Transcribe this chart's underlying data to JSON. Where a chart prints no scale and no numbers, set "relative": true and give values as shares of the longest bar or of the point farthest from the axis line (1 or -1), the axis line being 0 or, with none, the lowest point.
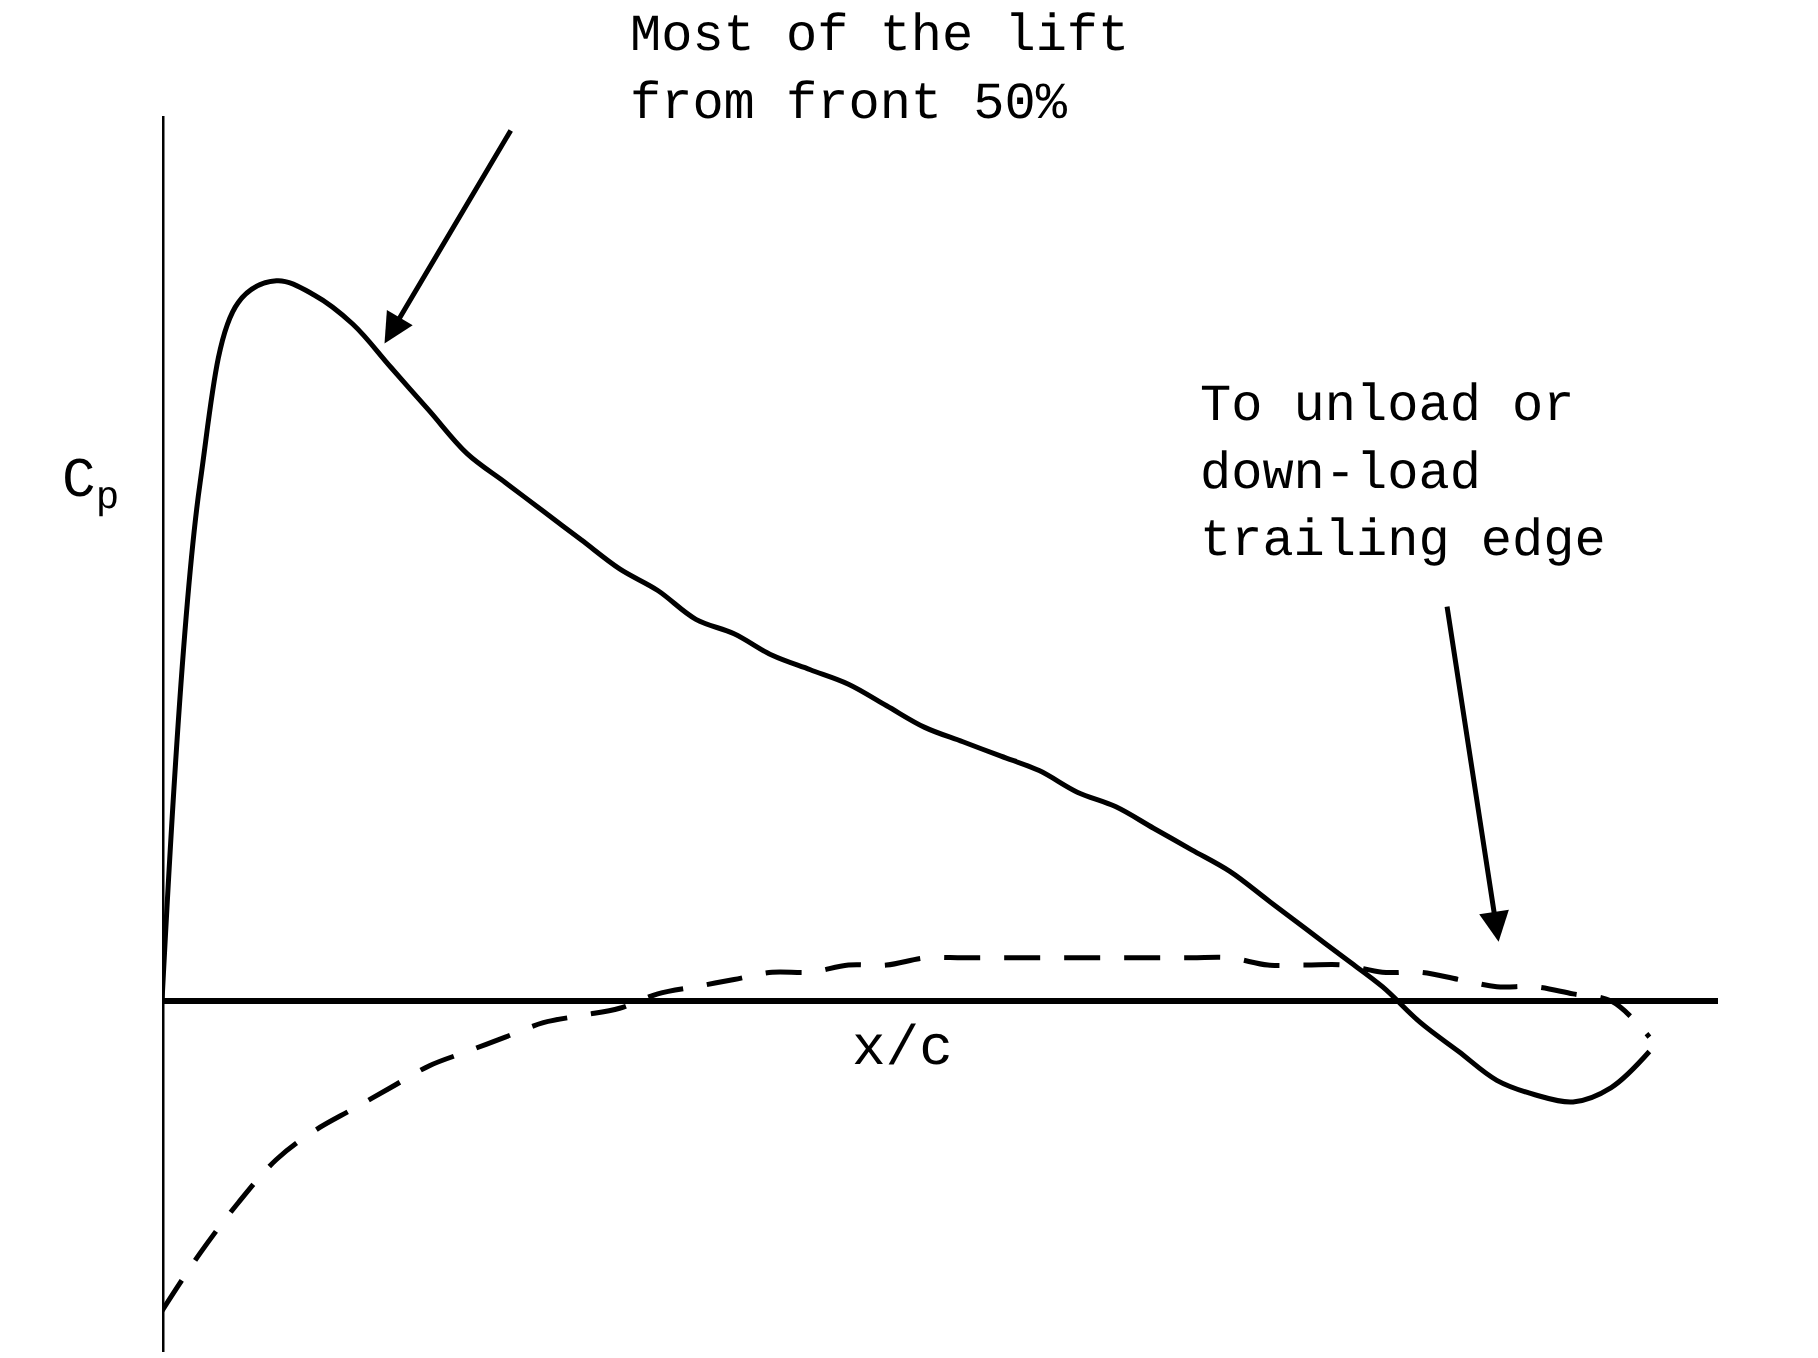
{
  "chart_data": {
    "type": "line",
    "relative": true,
    "xlabel": "x/c",
    "ylabel": "C$_{p}$",
    "annotations": [
      "Most of the lift\nfrom front 50%",
      "To unload or\ndown-load\ntrailing edge"
    ],
    "categories": [
      null,
      null,
      null,
      null,
      null,
      null,
      null,
      null,
      null,
      null,
      null,
      null,
      null,
      null,
      null,
      null,
      null,
      null,
      null,
      null,
      null,
      null,
      null,
      null,
      null,
      null,
      null,
      null,
      null,
      null,
      null,
      null,
      null,
      null,
      null,
      null,
      null,
      null,
      null,
      null
    ],
    "series": [
      {
        "color": "#000000",
        "line_style": "solid",
        "values": [
          0,
          0.72,
          0.97,
          1,
          0.98,
          0.94,
          0.88,
          0.82,
          0.76,
          0.72,
          0.68,
          0.64,
          0.6,
          0.57,
          0.53,
          0.51,
          0.48,
          0.46,
          0.44,
          0.41,
          0.38,
          0.36,
          0.34,
          0.32,
          0.29,
          0.27,
          0.24,
          0.21,
          0.18,
          0.14,
          0.1,
          0.06,
          0.02,
          -0.03,
          -0.07,
          -0.11,
          -0.13,
          -0.14,
          -0.12,
          -0.07
        ]
      },
      {
        "color": "#000000",
        "line_style": "dashed",
        "values": [
          -0.43,
          -0.35,
          -0.28,
          -0.22,
          -0.18,
          -0.15,
          -0.12,
          -0.09,
          -0.07,
          -0.05,
          -0.03,
          -0.02,
          -0.01,
          0.01,
          0.02,
          0.03,
          0.04,
          0.04,
          0.05,
          0.05,
          0.06,
          0.06,
          0.06,
          0.06,
          0.06,
          0.06,
          0.06,
          0.06,
          0.06,
          0.05,
          0.05,
          0.05,
          0.04,
          0.04,
          0.03,
          0.02,
          0.02,
          0.01,
          0,
          -0.05
        ]
      }
    ]
  }
}
